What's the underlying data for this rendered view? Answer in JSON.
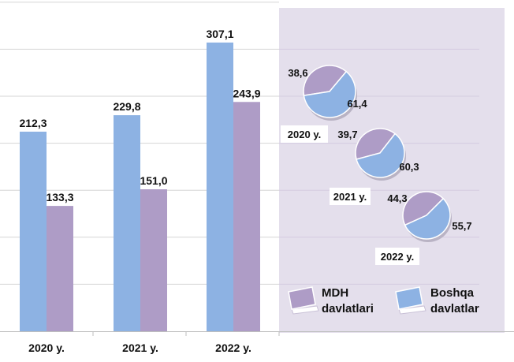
{
  "chart_data": [
    {
      "type": "bar",
      "categories": [
        "2020 y.",
        "2021 y.",
        "2022 y."
      ],
      "series": [
        {
          "name": "Boshqa davlatlar",
          "values": [
            212.3,
            229.8,
            307.1
          ],
          "labels": [
            "212,3",
            "229,8",
            "307,1"
          ],
          "color": "#8DB2E3"
        },
        {
          "name": "MDH davlatlari",
          "values": [
            133.3,
            151.0,
            243.9
          ],
          "labels": [
            "133,3",
            "151,0",
            "243,9"
          ],
          "color": "#AE9CC6"
        }
      ],
      "ylim": [
        0,
        350
      ],
      "grid": true,
      "xlabel": "",
      "ylabel": ""
    },
    {
      "type": "pie",
      "pies": [
        {
          "label": "2020 y.",
          "slices": [
            {
              "name": "MDH davlatlari",
              "value": 38.6,
              "label": "38,6"
            },
            {
              "name": "Boshqa davlatlar",
              "value": 61.4,
              "label": "61,4"
            }
          ]
        },
        {
          "label": "2021 y.",
          "slices": [
            {
              "name": "MDH davlatlari",
              "value": 39.7,
              "label": "39,7"
            },
            {
              "name": "Boshqa davlatlar",
              "value": 60.3,
              "label": "60,3"
            }
          ]
        },
        {
          "label": "2022 y.",
          "slices": [
            {
              "name": "MDH davlatlari",
              "value": 44.3,
              "label": "44,3"
            },
            {
              "name": "Boshqa davlatlar",
              "value": 55.7,
              "label": "55,7"
            }
          ]
        }
      ],
      "colors": {
        "mdh": "#AE9CC6",
        "boshqa": "#8DB2E3"
      },
      "background": "#E4DFEC"
    }
  ],
  "legend": {
    "placement": "bottom-right",
    "items": [
      {
        "key": "mdh",
        "line1": "MDH",
        "line2": "davlatlari"
      },
      {
        "key": "boshqa",
        "line1": "Boshqa",
        "line2": "davlatlar"
      }
    ]
  }
}
